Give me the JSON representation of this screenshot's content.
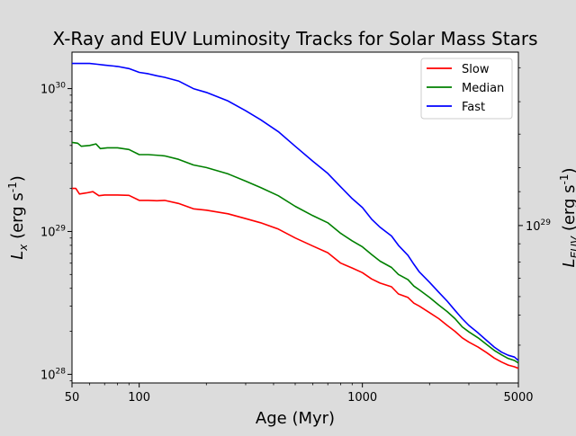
{
  "chart_data": {
    "type": "line",
    "title": "X-Ray and EUV Luminosity Tracks for Solar Mass Stars",
    "xlabel": "Age (Myr)",
    "ylabel_left": "L_x (erg s^-1)",
    "ylabel_right": "L_EUV (erg s^-1)",
    "xscale": "log",
    "yscale": "log",
    "xlim": [
      50,
      5000
    ],
    "ylim": [
      8.7e+27,
      1.8e+30
    ],
    "x_ticks": [
      50,
      100,
      1000,
      5000
    ],
    "x_tick_labels": [
      "50",
      "100",
      "1000",
      "5000"
    ],
    "y_ticks": [
      1e+28,
      1e+29,
      1e+30
    ],
    "y_tick_labels": [
      "10^28",
      "10^29",
      "10^30"
    ],
    "right_y_ticks_left_units": [
      1.1e+29
    ],
    "right_y_tick_labels": [
      "10^29"
    ],
    "legend_position": "top-right",
    "series": [
      {
        "name": "Slow",
        "color": "#ff0000",
        "points": [
          [
            50,
            2e+29
          ],
          [
            52,
            2e+29
          ],
          [
            54,
            1.83e+29
          ],
          [
            58,
            1.86e+29
          ],
          [
            62,
            1.9e+29
          ],
          [
            66,
            1.78e+29
          ],
          [
            70,
            1.8e+29
          ],
          [
            80,
            1.8e+29
          ],
          [
            90,
            1.79e+29
          ],
          [
            100,
            1.65e+29
          ],
          [
            110,
            1.65e+29
          ],
          [
            120,
            1.64e+29
          ],
          [
            130,
            1.65e+29
          ],
          [
            150,
            1.57e+29
          ],
          [
            175,
            1.44e+29
          ],
          [
            200,
            1.41e+29
          ],
          [
            250,
            1.33e+29
          ],
          [
            300,
            1.23e+29
          ],
          [
            350,
            1.15e+29
          ],
          [
            420,
            1.04e+29
          ],
          [
            500,
            9e+28
          ],
          [
            600,
            7.9e+28
          ],
          [
            700,
            7.1e+28
          ],
          [
            800,
            6e+28
          ],
          [
            900,
            5.55e+28
          ],
          [
            1000,
            5.15e+28
          ],
          [
            1100,
            4.65e+28
          ],
          [
            1200,
            4.35e+28
          ],
          [
            1350,
            4.1e+28
          ],
          [
            1450,
            3.65e+28
          ],
          [
            1600,
            3.45e+28
          ],
          [
            1700,
            3.15e+28
          ],
          [
            1800,
            3e+28
          ],
          [
            2000,
            2.7e+28
          ],
          [
            2200,
            2.45e+28
          ],
          [
            2400,
            2.2e+28
          ],
          [
            2600,
            2e+28
          ],
          [
            2800,
            1.8e+28
          ],
          [
            3000,
            1.68e+28
          ],
          [
            3300,
            1.55e+28
          ],
          [
            3600,
            1.42e+28
          ],
          [
            3900,
            1.3e+28
          ],
          [
            4200,
            1.22e+28
          ],
          [
            4500,
            1.16e+28
          ],
          [
            4800,
            1.13e+28
          ],
          [
            5000,
            1.1e+28
          ]
        ]
      },
      {
        "name": "Median",
        "color": "#008000",
        "points": [
          [
            50,
            4.2e+29
          ],
          [
            53,
            4.15e+29
          ],
          [
            55,
            3.95e+29
          ],
          [
            60,
            4e+29
          ],
          [
            64,
            4.1e+29
          ],
          [
            67,
            3.8e+29
          ],
          [
            72,
            3.85e+29
          ],
          [
            80,
            3.85e+29
          ],
          [
            90,
            3.75e+29
          ],
          [
            100,
            3.45e+29
          ],
          [
            110,
            3.45e+29
          ],
          [
            125,
            3.4e+29
          ],
          [
            130,
            3.38e+29
          ],
          [
            150,
            3.2e+29
          ],
          [
            175,
            2.92e+29
          ],
          [
            200,
            2.8e+29
          ],
          [
            250,
            2.53e+29
          ],
          [
            300,
            2.25e+29
          ],
          [
            350,
            2.03e+29
          ],
          [
            420,
            1.78e+29
          ],
          [
            500,
            1.5e+29
          ],
          [
            600,
            1.29e+29
          ],
          [
            700,
            1.15e+29
          ],
          [
            800,
            9.7e+28
          ],
          [
            900,
            8.6e+28
          ],
          [
            1000,
            7.8e+28
          ],
          [
            1100,
            6.9e+28
          ],
          [
            1200,
            6.2e+28
          ],
          [
            1350,
            5.6e+28
          ],
          [
            1450,
            5e+28
          ],
          [
            1600,
            4.6e+28
          ],
          [
            1700,
            4.15e+28
          ],
          [
            1800,
            3.9e+28
          ],
          [
            2000,
            3.45e+28
          ],
          [
            2200,
            3.05e+28
          ],
          [
            2400,
            2.75e+28
          ],
          [
            2600,
            2.45e+28
          ],
          [
            2800,
            2.15e+28
          ],
          [
            3000,
            1.98e+28
          ],
          [
            3300,
            1.8e+28
          ],
          [
            3600,
            1.62e+28
          ],
          [
            3900,
            1.47e+28
          ],
          [
            4200,
            1.37e+28
          ],
          [
            4500,
            1.29e+28
          ],
          [
            4800,
            1.25e+28
          ],
          [
            5000,
            1.2e+28
          ]
        ]
      },
      {
        "name": "Fast",
        "color": "#0000ff",
        "points": [
          [
            50,
            1.5e+30
          ],
          [
            55,
            1.5e+30
          ],
          [
            60,
            1.5e+30
          ],
          [
            65,
            1.48e+30
          ],
          [
            70,
            1.46e+30
          ],
          [
            80,
            1.43e+30
          ],
          [
            90,
            1.38e+30
          ],
          [
            100,
            1.3e+30
          ],
          [
            110,
            1.27e+30
          ],
          [
            120,
            1.23e+30
          ],
          [
            130,
            1.2e+30
          ],
          [
            150,
            1.13e+30
          ],
          [
            175,
            1e+30
          ],
          [
            200,
            9.4e+29
          ],
          [
            250,
            8.2e+29
          ],
          [
            300,
            7e+29
          ],
          [
            350,
            6.05e+29
          ],
          [
            420,
            5e+29
          ],
          [
            500,
            3.95e+29
          ],
          [
            600,
            3.1e+29
          ],
          [
            700,
            2.55e+29
          ],
          [
            800,
            2.05e+29
          ],
          [
            900,
            1.7e+29
          ],
          [
            1000,
            1.47e+29
          ],
          [
            1100,
            1.22e+29
          ],
          [
            1200,
            1.07e+29
          ],
          [
            1350,
            9.3e+28
          ],
          [
            1450,
            8e+28
          ],
          [
            1600,
            6.8e+28
          ],
          [
            1700,
            5.9e+28
          ],
          [
            1800,
            5.2e+28
          ],
          [
            2000,
            4.4e+28
          ],
          [
            2200,
            3.75e+28
          ],
          [
            2400,
            3.25e+28
          ],
          [
            2600,
            2.8e+28
          ],
          [
            2800,
            2.45e+28
          ],
          [
            3000,
            2.2e+28
          ],
          [
            3300,
            1.95e+28
          ],
          [
            3600,
            1.73e+28
          ],
          [
            3900,
            1.55e+28
          ],
          [
            4200,
            1.43e+28
          ],
          [
            4500,
            1.36e+28
          ],
          [
            4800,
            1.32e+28
          ],
          [
            5000,
            1.25e+28
          ]
        ]
      }
    ]
  }
}
